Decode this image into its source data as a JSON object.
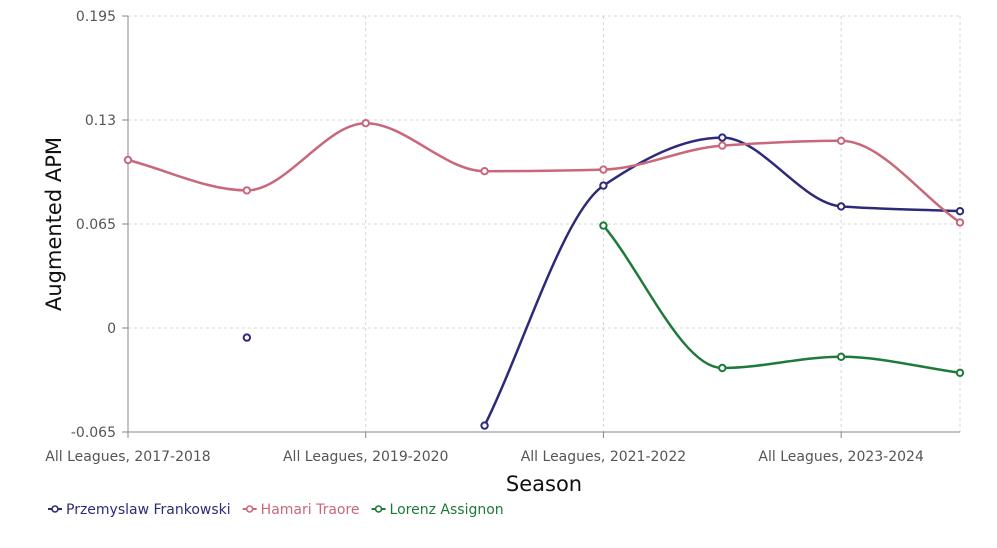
{
  "chart_data": {
    "type": "line",
    "xlabel": "Season",
    "ylabel": "Augmented APM",
    "x": [
      "All Leagues, 2017-2018",
      "",
      "All Leagues, 2019-2020",
      "",
      "All Leagues, 2021-2022",
      "",
      "All Leagues, 2023-2024",
      ""
    ],
    "x_tick_labels": [
      "All Leagues, 2017-2018",
      "All Leagues, 2019-2020",
      "All Leagues, 2021-2022",
      "All Leagues, 2023-2024"
    ],
    "ylim": [
      -0.065,
      0.195
    ],
    "y_ticks": [
      -0.065,
      0,
      0.065,
      0.13,
      0.195
    ],
    "y_tick_labels": [
      "-0.065",
      "0",
      "0.065",
      "0.13",
      "0.195"
    ],
    "grid": true,
    "legend_position": "bottom-left",
    "series": [
      {
        "name": "Przemyslaw Frankowski",
        "color": "#2e2a7a",
        "values": [
          null,
          -0.006,
          null,
          -0.061,
          0.089,
          0.119,
          0.076,
          0.073
        ]
      },
      {
        "name": "Hamari Traore",
        "color": "#c9687a",
        "values": [
          0.105,
          0.086,
          0.128,
          0.098,
          0.099,
          0.114,
          0.117,
          0.066
        ]
      },
      {
        "name": "Lorenz Assignon",
        "color": "#1f7a3a",
        "values": [
          null,
          null,
          null,
          null,
          0.064,
          -0.025,
          -0.018,
          -0.028
        ]
      }
    ]
  }
}
